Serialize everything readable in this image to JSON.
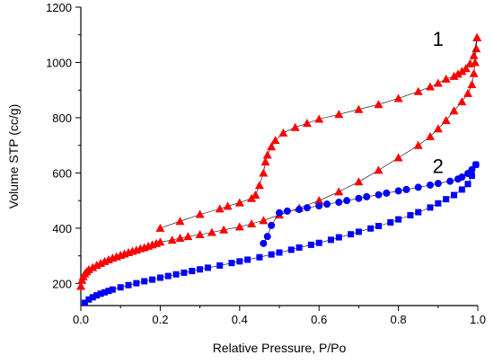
{
  "chart_data": {
    "type": "scatter",
    "title": "",
    "xlabel": "Relative Pressure, P/Po",
    "ylabel": "Volume STP (cc/g)",
    "xlim": [
      0.0,
      1.0
    ],
    "ylim": [
      120,
      1200
    ],
    "xticks": [
      0.0,
      0.2,
      0.4,
      0.6,
      0.8,
      1.0
    ],
    "xtick_labels": [
      "0.0",
      "0.2",
      "0.4",
      "0.6",
      "0.8",
      "1.0"
    ],
    "yticks": [
      200,
      400,
      600,
      800,
      1000,
      1200
    ],
    "ytick_labels": [
      "200",
      "400",
      "600",
      "800",
      "1000",
      "1200"
    ],
    "grid": false,
    "legend": "none",
    "annotations": [
      {
        "text": "1",
        "x": 0.9,
        "y": 1060
      },
      {
        "text": "2",
        "x": 0.9,
        "y": 600
      }
    ],
    "series": [
      {
        "label": "1",
        "branch": "adsorption",
        "color": "#ff0000",
        "marker": "triangle",
        "x": [
          0.0,
          0.003,
          0.006,
          0.01,
          0.015,
          0.02,
          0.03,
          0.04,
          0.05,
          0.06,
          0.07,
          0.08,
          0.09,
          0.1,
          0.11,
          0.12,
          0.13,
          0.14,
          0.15,
          0.16,
          0.17,
          0.18,
          0.19,
          0.2,
          0.23,
          0.25,
          0.27,
          0.3,
          0.33,
          0.36,
          0.4,
          0.43,
          0.46,
          0.5,
          0.55,
          0.6,
          0.65,
          0.7,
          0.75,
          0.8,
          0.85,
          0.88,
          0.9,
          0.92,
          0.94,
          0.96,
          0.975,
          0.985,
          0.99,
          0.993,
          0.996,
          0.998
        ],
        "y": [
          190,
          212,
          225,
          235,
          243,
          250,
          258,
          266,
          273,
          280,
          286,
          292,
          297,
          302,
          307,
          312,
          317,
          321,
          326,
          330,
          335,
          340,
          345,
          350,
          357,
          364,
          370,
          377,
          385,
          394,
          405,
          416,
          428,
          448,
          473,
          500,
          532,
          568,
          610,
          655,
          700,
          732,
          760,
          790,
          825,
          858,
          888,
          920,
          960,
          1000,
          1050,
          1090
        ]
      },
      {
        "label": "1",
        "branch": "desorption",
        "color": "#ff0000",
        "marker": "triangle",
        "x": [
          0.998,
          0.99,
          0.98,
          0.97,
          0.96,
          0.95,
          0.94,
          0.92,
          0.9,
          0.88,
          0.85,
          0.8,
          0.75,
          0.7,
          0.65,
          0.6,
          0.57,
          0.54,
          0.51,
          0.49,
          0.48,
          0.47,
          0.465,
          0.46,
          0.45,
          0.44,
          0.43,
          0.4,
          0.37,
          0.35,
          0.3,
          0.25,
          0.2
        ],
        "y": [
          1090,
          1025,
          995,
          978,
          968,
          958,
          950,
          940,
          925,
          912,
          895,
          870,
          848,
          830,
          812,
          795,
          780,
          765,
          745,
          718,
          695,
          665,
          640,
          600,
          555,
          520,
          508,
          492,
          480,
          470,
          450,
          425,
          400
        ]
      },
      {
        "label": "2",
        "branch": "adsorption",
        "color": "#0000ff",
        "marker": "square",
        "x": [
          0.01,
          0.02,
          0.03,
          0.04,
          0.05,
          0.06,
          0.07,
          0.08,
          0.1,
          0.12,
          0.14,
          0.16,
          0.18,
          0.2,
          0.22,
          0.24,
          0.26,
          0.28,
          0.3,
          0.32,
          0.35,
          0.38,
          0.4,
          0.42,
          0.45,
          0.48,
          0.5,
          0.53,
          0.55,
          0.58,
          0.6,
          0.63,
          0.65,
          0.68,
          0.7,
          0.73,
          0.75,
          0.78,
          0.8,
          0.83,
          0.85,
          0.88,
          0.9,
          0.92,
          0.94,
          0.96,
          0.975,
          0.985,
          0.995
        ],
        "y": [
          130,
          142,
          150,
          157,
          163,
          168,
          173,
          178,
          186,
          194,
          201,
          208,
          214,
          221,
          227,
          233,
          239,
          245,
          251,
          257,
          265,
          274,
          280,
          286,
          295,
          305,
          312,
          322,
          330,
          340,
          347,
          358,
          367,
          378,
          387,
          399,
          408,
          421,
          432,
          447,
          458,
          475,
          490,
          505,
          520,
          540,
          560,
          590,
          630
        ]
      },
      {
        "label": "2",
        "branch": "desorption",
        "color": "#0000ff",
        "marker": "circle",
        "x": [
          0.995,
          0.985,
          0.975,
          0.96,
          0.95,
          0.93,
          0.9,
          0.88,
          0.85,
          0.82,
          0.8,
          0.77,
          0.75,
          0.72,
          0.7,
          0.67,
          0.65,
          0.62,
          0.6,
          0.57,
          0.55,
          0.52,
          0.5,
          0.48,
          0.47,
          0.46
        ],
        "y": [
          630,
          612,
          598,
          585,
          578,
          570,
          562,
          556,
          548,
          540,
          535,
          527,
          521,
          514,
          508,
          500,
          494,
          487,
          481,
          474,
          468,
          462,
          456,
          410,
          370,
          345
        ]
      }
    ]
  }
}
